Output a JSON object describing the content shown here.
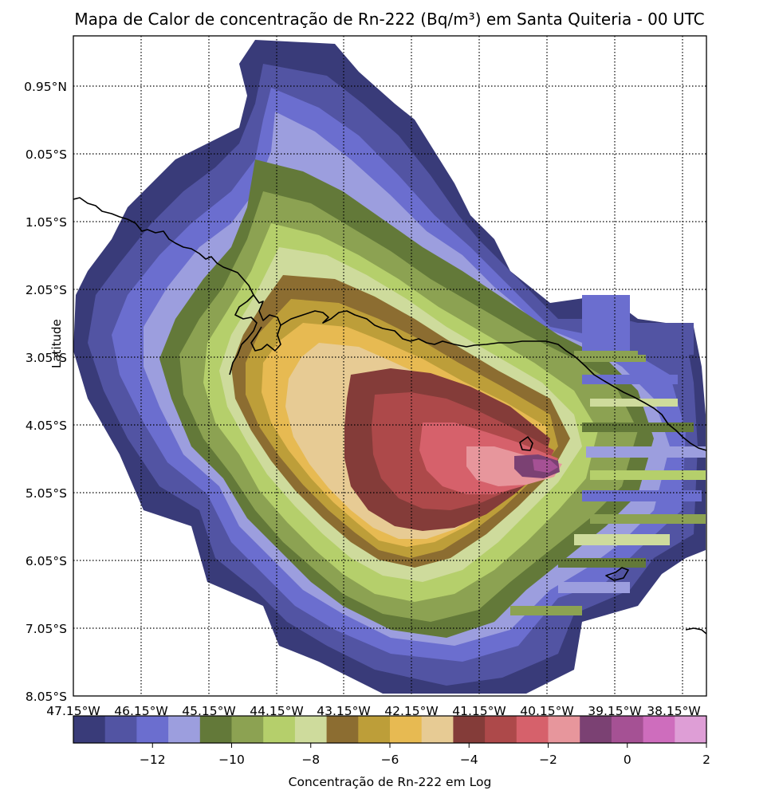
{
  "title": "Mapa de Calor de concentração de Rn-222 (Bq/m³) em Santa Quiteria - 00 UTC",
  "y_axis_label": "Latitude",
  "lat_ticks": [
    "0.95°N",
    "0.05°S",
    "1.05°S",
    "2.05°S",
    "3.05°S",
    "4.05°S",
    "5.05°S",
    "6.05°S",
    "7.05°S",
    "8.05°S"
  ],
  "lon_ticks": [
    "47.15°W",
    "46.15°W",
    "45.15°W",
    "44.15°W",
    "43.15°W",
    "42.15°W",
    "41.15°W",
    "40.15°W",
    "39.15°W",
    "38.15°W"
  ],
  "colorbar": {
    "label": "Concentração de Rn-222 em Log",
    "ticks": [
      "−12",
      "−10",
      "−8",
      "−6",
      "−4",
      "−2",
      "0",
      "2"
    ],
    "range": [
      -14,
      2
    ],
    "colors": [
      "#393b79",
      "#5254a3",
      "#6b6ecf",
      "#9c9ede",
      "#637939",
      "#8ca252",
      "#b5cf6b",
      "#cedb9c",
      "#8c6d31",
      "#bd9e39",
      "#e7ba52",
      "#e7cb94",
      "#843c39",
      "#ad494a",
      "#d6616b",
      "#e7969c",
      "#7b4173",
      "#a55194",
      "#ce6dbd",
      "#de9ed6"
    ]
  }
}
